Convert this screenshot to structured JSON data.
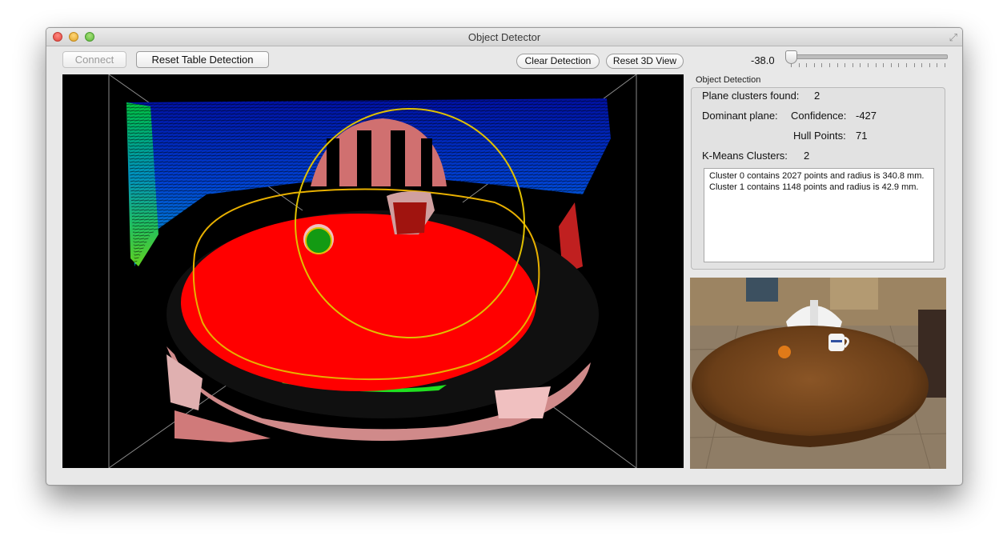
{
  "window": {
    "title": "Object Detector"
  },
  "toolbar": {
    "connect_label": "Connect",
    "reset_table_label": "Reset Table Detection",
    "clear_detection_label": "Clear Detection",
    "reset_3d_label": "Reset 3D View",
    "slider_value": "-38.0",
    "slider_position": 0.0
  },
  "detection": {
    "group_title": "Object Detection",
    "plane_clusters_label": "Plane clusters found:",
    "plane_clusters_value": "2",
    "dominant_plane_label": "Dominant plane:",
    "confidence_label": "Confidence:",
    "confidence_value": "-427",
    "hull_points_label": "Hull Points:",
    "hull_points_value": "71",
    "kmeans_label": "K-Means Clusters:",
    "kmeans_value": "2",
    "clusters": [
      "Cluster 0 contains 2027 points and radius is 340.8 mm.",
      "Cluster 1 contains 1148 points and radius is 42.9 mm."
    ]
  },
  "icons": {
    "close": "close-button-icon",
    "minimize": "minimize-button-icon",
    "zoom": "zoom-button-icon",
    "fullscreen": "fullscreen-icon"
  },
  "colors": {
    "table_plane": "#ff0000",
    "hull_outline": "#e0b000",
    "object_green": "#139a13",
    "object_mug": "#a0140f"
  }
}
